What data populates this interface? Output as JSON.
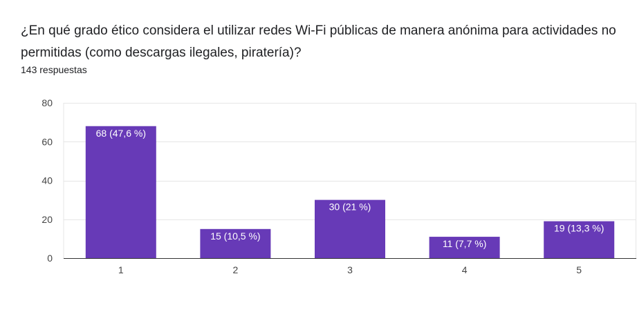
{
  "question": {
    "title": "¿En qué grado ético considera el utilizar redes Wi-Fi públicas de manera anónima para actividades no permitidas (como descargas ilegales, piratería)?",
    "responses": "143 respuestas"
  },
  "chart_data": {
    "type": "bar",
    "categories": [
      "1",
      "2",
      "3",
      "4",
      "5"
    ],
    "values": [
      68,
      15,
      30,
      11,
      19
    ],
    "data_labels": [
      "68 (47,6 %)",
      "15 (10,5 %)",
      "30 (21 %)",
      "11 (7,7 %)",
      "19 (13,3 %)"
    ],
    "yticks": [
      0,
      20,
      40,
      60,
      80
    ],
    "ylim": [
      0,
      80
    ],
    "grid": true,
    "legend": "none",
    "bar_color": "#673ab7",
    "grid_color": "#e6e6e6",
    "axis_color": "#333333"
  }
}
